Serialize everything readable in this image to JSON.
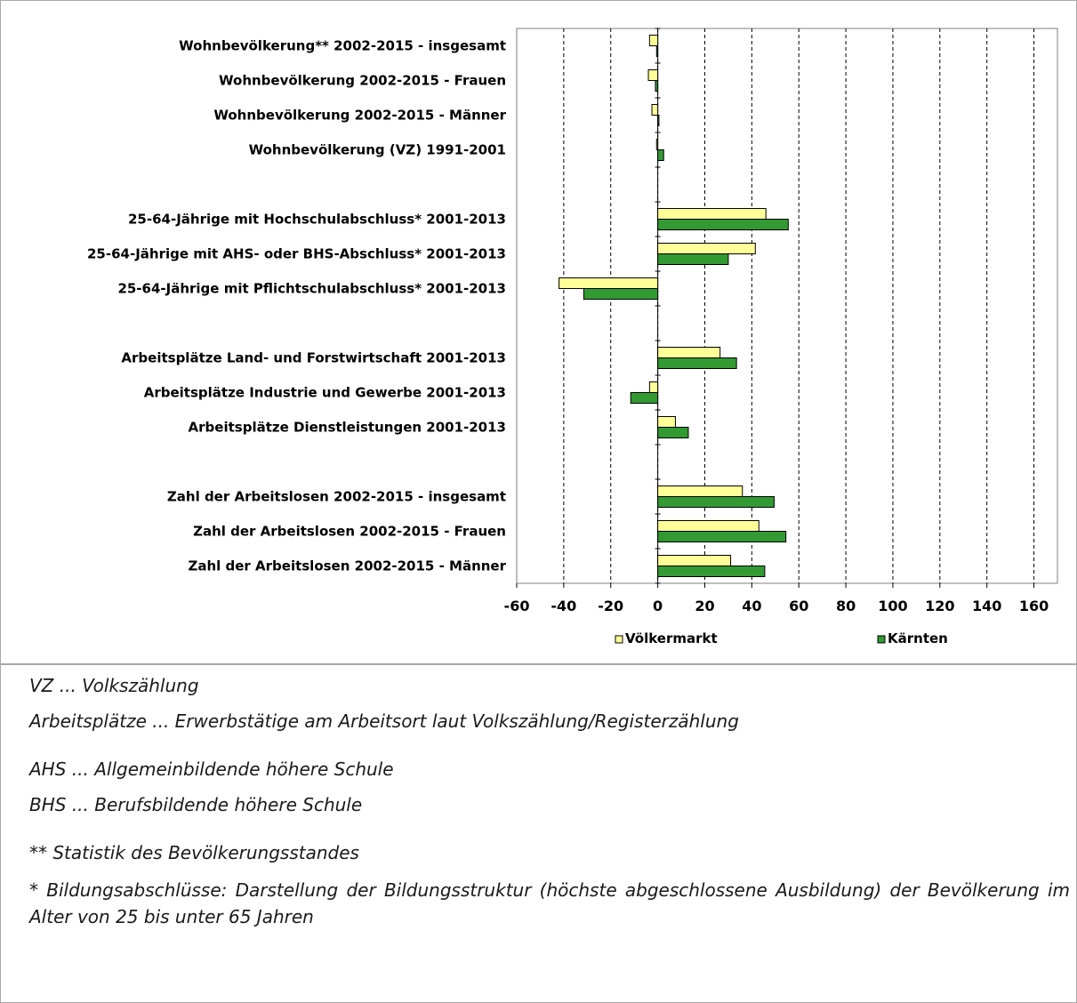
{
  "chart_data": {
    "type": "bar",
    "orientation": "horizontal",
    "categories": [
      "Wohnbevölkerung** 2002-2015 - insgesamt",
      "Wohnbevölkerung 2002-2015 - Frauen",
      "Wohnbevölkerung 2002-2015 - Männer",
      "Wohnbevölkerung (VZ) 1991-2001",
      "",
      "25-64-Jährige mit Hochschulabschluss* 2001-2013",
      "25-64-Jährige mit AHS- oder BHS-Abschluss* 2001-2013",
      "25-64-Jährige mit Pflichtschulabschluss* 2001-2013",
      "",
      "Arbeitsplätze Land- und Forstwirtschaft 2001-2013",
      "Arbeitsplätze Industrie und Gewerbe 2001-2013",
      "Arbeitsplätze Dienstleistungen 2001-2013",
      "",
      "Zahl der Arbeitslosen 2002-2015 - insgesamt",
      "Zahl der Arbeitslosen 2002-2015 - Frauen",
      "Zahl der Arbeitslosen 2002-2015 - Männer"
    ],
    "series": [
      {
        "name": "Völkermarkt",
        "color": "#ffff99",
        "values": [
          -3.5,
          -4,
          -2.5,
          -0.5,
          null,
          46,
          41.5,
          -42,
          null,
          26.5,
          -3.5,
          7.5,
          null,
          36,
          43,
          31
        ]
      },
      {
        "name": "Kärnten",
        "color": "#339933",
        "values": [
          -0.5,
          -1,
          0.5,
          2.5,
          null,
          55.5,
          30,
          -31.5,
          null,
          33.5,
          -11.5,
          13,
          null,
          49.5,
          54.5,
          45.5
        ]
      }
    ],
    "xlim": [
      -60,
      170
    ],
    "xticks": [
      -60,
      -40,
      -20,
      0,
      20,
      40,
      60,
      80,
      100,
      120,
      140,
      160
    ],
    "grid": "vertical dashed",
    "legend": "bottom"
  },
  "notes": [
    "VZ ... Volkszählung",
    "Arbeitsplätze ... Erwerbstätige am Arbeitsort laut Volkszählung/Registerzählung",
    "AHS ... Allgemeinbildende höhere Schule",
    "BHS ... Berufsbildende höhere Schule",
    "** Statistik des Bevölkerungsstandes",
    "* Bildungsabschlüsse: Darstellung der Bildungsstruktur (höchste abgeschlossene Ausbildung) der Bevölkerung im Alter von 25 bis unter 65 Jahren"
  ]
}
